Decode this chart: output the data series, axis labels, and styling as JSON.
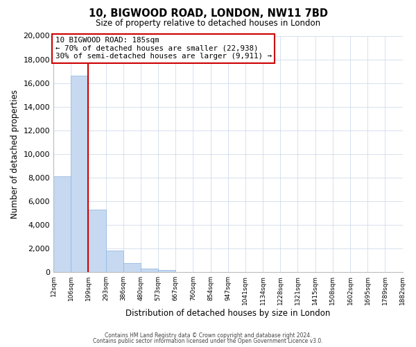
{
  "title": "10, BIGWOOD ROAD, LONDON, NW11 7BD",
  "subtitle": "Size of property relative to detached houses in London",
  "xlabel": "Distribution of detached houses by size in London",
  "ylabel": "Number of detached properties",
  "bin_labels": [
    "12sqm",
    "106sqm",
    "199sqm",
    "293sqm",
    "386sqm",
    "480sqm",
    "573sqm",
    "667sqm",
    "760sqm",
    "854sqm",
    "947sqm",
    "1041sqm",
    "1134sqm",
    "1228sqm",
    "1321sqm",
    "1415sqm",
    "1508sqm",
    "1602sqm",
    "1695sqm",
    "1789sqm",
    "1882sqm"
  ],
  "bar_values": [
    8100,
    16600,
    5300,
    1800,
    750,
    300,
    200,
    0,
    0,
    0,
    0,
    0,
    0,
    0,
    0,
    0,
    0,
    0,
    0,
    0
  ],
  "bar_color": "#c6d9f0",
  "bar_edge_color": "#8db4e3",
  "vline_color": "#cc0000",
  "ylim": [
    0,
    20000
  ],
  "yticks": [
    0,
    2000,
    4000,
    6000,
    8000,
    10000,
    12000,
    14000,
    16000,
    18000,
    20000
  ],
  "annotation_title": "10 BIGWOOD ROAD: 185sqm",
  "annotation_line1": "← 70% of detached houses are smaller (22,938)",
  "annotation_line2": "30% of semi-detached houses are larger (9,911) →",
  "annotation_box_color": "#ffffff",
  "annotation_box_edge_color": "#cc0000",
  "footer1": "Contains HM Land Registry data © Crown copyright and database right 2024.",
  "footer2": "Contains public sector information licensed under the Open Government Licence v3.0.",
  "background_color": "#ffffff",
  "grid_color": "#c8d4e8"
}
